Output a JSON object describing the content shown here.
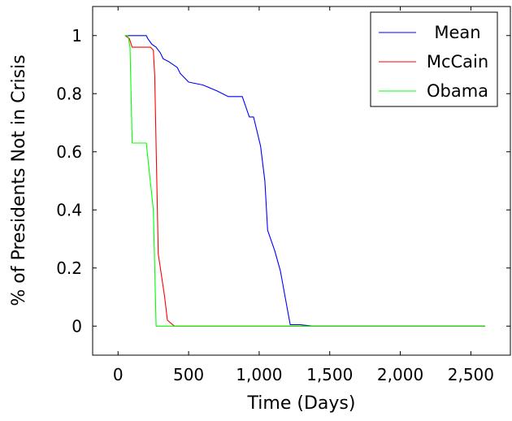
{
  "chart_data": {
    "type": "line",
    "xlabel": "Time (Days)",
    "ylabel": "% of Presidents Not in Crisis",
    "xlim": [
      -180,
      2780
    ],
    "ylim": [
      -0.1,
      1.1
    ],
    "xticks": [
      0,
      500,
      1000,
      1500,
      2000,
      2500
    ],
    "xtick_labels": [
      "0",
      "500",
      "1,000",
      "1,500",
      "2,000",
      "2,500"
    ],
    "yticks": [
      0,
      0.2,
      0.4,
      0.6,
      0.8,
      1
    ],
    "ytick_labels": [
      "0",
      "0.2",
      "0.4",
      "0.6",
      "0.8",
      "1"
    ],
    "legend_position": "top-right",
    "grid": false,
    "series": [
      {
        "name": "Mean",
        "color": "#0000ff",
        "points": [
          [
            50,
            1
          ],
          [
            80,
            1
          ],
          [
            200,
            1
          ],
          [
            210,
            0.99
          ],
          [
            240,
            0.97
          ],
          [
            270,
            0.96
          ],
          [
            300,
            0.94
          ],
          [
            320,
            0.92
          ],
          [
            360,
            0.91
          ],
          [
            420,
            0.89
          ],
          [
            440,
            0.87
          ],
          [
            480,
            0.85
          ],
          [
            500,
            0.84
          ],
          [
            600,
            0.83
          ],
          [
            700,
            0.81
          ],
          [
            780,
            0.79
          ],
          [
            880,
            0.79
          ],
          [
            930,
            0.72
          ],
          [
            960,
            0.72
          ],
          [
            1010,
            0.62
          ],
          [
            1040,
            0.5
          ],
          [
            1060,
            0.33
          ],
          [
            1110,
            0.26
          ],
          [
            1150,
            0.19
          ],
          [
            1220,
            0.005
          ],
          [
            1290,
            0.005
          ],
          [
            1380,
            0
          ],
          [
            2600,
            0
          ]
        ]
      },
      {
        "name": "McCain",
        "color": "#ff0000",
        "points": [
          [
            50,
            1
          ],
          [
            80,
            0.99
          ],
          [
            100,
            0.96
          ],
          [
            230,
            0.96
          ],
          [
            250,
            0.95
          ],
          [
            260,
            0.86
          ],
          [
            285,
            0.25
          ],
          [
            330,
            0.1
          ],
          [
            350,
            0.02
          ],
          [
            400,
            0
          ],
          [
            2600,
            0
          ]
        ]
      },
      {
        "name": "Obama",
        "color": "#00ff00",
        "points": [
          [
            50,
            1
          ],
          [
            70,
            1
          ],
          [
            85,
            0.96
          ],
          [
            100,
            0.63
          ],
          [
            200,
            0.63
          ],
          [
            250,
            0.4
          ],
          [
            270,
            0
          ],
          [
            2600,
            0
          ]
        ]
      }
    ]
  }
}
